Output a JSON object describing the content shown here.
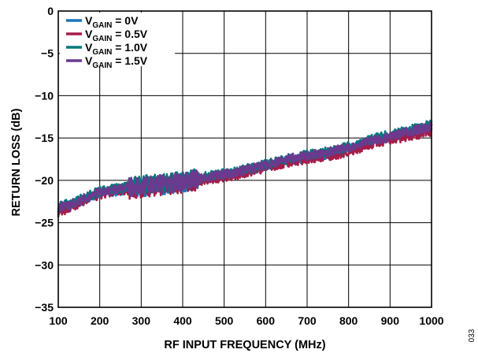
{
  "chart_data": {
    "type": "line",
    "title": "",
    "xlabel": "RF INPUT FREQUENCY (MHz)",
    "ylabel": "RETURN LOSS (dB)",
    "xlim": [
      100,
      1000
    ],
    "ylim": [
      -35,
      0
    ],
    "xticks": [
      "100",
      "200",
      "300",
      "400",
      "500",
      "600",
      "700",
      "800",
      "900",
      "1000"
    ],
    "yticks": [
      "0",
      "−5",
      "−10",
      "−15",
      "−20",
      "−25",
      "−30",
      "−35"
    ],
    "grid": true,
    "legend_position": "top-left",
    "x": [
      100,
      125,
      150,
      175,
      200,
      225,
      250,
      275,
      300,
      325,
      350,
      375,
      400,
      425,
      450,
      475,
      500,
      525,
      550,
      575,
      600,
      625,
      650,
      675,
      700,
      725,
      750,
      775,
      800,
      825,
      850,
      875,
      900,
      925,
      950,
      975,
      1000
    ],
    "series": [
      {
        "name_main": "V",
        "name_sub": "GAIN",
        "name_value": " = 0V",
        "color": "#1a75bc",
        "values": [
          -23.5,
          -23.2,
          -22.6,
          -22.0,
          -21.5,
          -21.4,
          -21.2,
          -21.0,
          -20.9,
          -20.7,
          -20.6,
          -20.5,
          -20.3,
          -20.1,
          -19.9,
          -19.6,
          -19.4,
          -19.2,
          -18.9,
          -18.6,
          -18.3,
          -18.0,
          -17.7,
          -17.5,
          -17.3,
          -17.1,
          -16.9,
          -16.6,
          -16.3,
          -15.9,
          -15.5,
          -15.2,
          -14.9,
          -14.6,
          -14.2,
          -13.9,
          -13.6
        ]
      },
      {
        "name_main": "V",
        "name_sub": "GAIN",
        "name_value": " = 0.5V",
        "color": "#a51d4a",
        "values": [
          -23.8,
          -23.3,
          -22.7,
          -22.1,
          -21.7,
          -21.5,
          -21.3,
          -21.1,
          -21.0,
          -20.8,
          -20.7,
          -20.6,
          -20.4,
          -20.2,
          -20.0,
          -19.8,
          -19.6,
          -19.4,
          -19.1,
          -18.8,
          -18.5,
          -18.2,
          -17.9,
          -17.7,
          -17.5,
          -17.3,
          -17.1,
          -16.9,
          -16.6,
          -16.2,
          -15.8,
          -15.5,
          -15.2,
          -15.0,
          -14.8,
          -14.5,
          -14.2
        ]
      },
      {
        "name_main": "V",
        "name_sub": "GAIN",
        "name_value": " = 1.0V",
        "color": "#00797b",
        "values": [
          -23.0,
          -22.8,
          -22.3,
          -21.8,
          -21.3,
          -21.1,
          -20.9,
          -20.7,
          -20.5,
          -20.4,
          -20.3,
          -20.2,
          -20.0,
          -19.8,
          -19.6,
          -19.4,
          -19.2,
          -19.0,
          -18.7,
          -18.4,
          -18.1,
          -17.8,
          -17.5,
          -17.2,
          -17.0,
          -16.8,
          -16.6,
          -16.3,
          -16.0,
          -15.6,
          -15.2,
          -14.9,
          -14.6,
          -14.3,
          -14.0,
          -13.6,
          -13.3
        ]
      },
      {
        "name_main": "V",
        "name_sub": "GAIN",
        "name_value": " = 1.5V",
        "color": "#6b3a8e",
        "values": [
          -23.2,
          -23.0,
          -22.4,
          -21.9,
          -21.4,
          -21.2,
          -21.0,
          -20.8,
          -20.6,
          -20.5,
          -20.4,
          -20.3,
          -20.1,
          -19.9,
          -19.7,
          -19.5,
          -19.3,
          -19.1,
          -18.8,
          -18.5,
          -18.2,
          -17.9,
          -17.6,
          -17.3,
          -17.1,
          -16.9,
          -16.7,
          -16.4,
          -16.1,
          -15.8,
          -15.4,
          -15.1,
          -14.8,
          -14.5,
          -14.2,
          -13.9,
          -13.7
        ]
      }
    ]
  },
  "figure_id": "033"
}
